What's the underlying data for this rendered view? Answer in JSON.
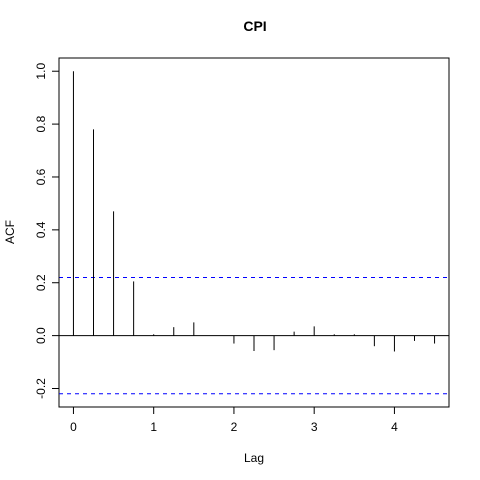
{
  "chart_data": {
    "type": "bar",
    "title": "CPI",
    "xlabel": "Lag",
    "ylabel": "ACF",
    "x": [
      0,
      0.25,
      0.5,
      0.75,
      1.0,
      1.25,
      1.5,
      1.75,
      2.0,
      2.25,
      2.5,
      2.75,
      3.0,
      3.25,
      3.5,
      3.75,
      4.0,
      4.25,
      4.5
    ],
    "values": [
      1.0,
      0.78,
      0.47,
      0.205,
      0.005,
      0.032,
      0.05,
      0.0,
      -0.03,
      -0.058,
      -0.055,
      0.015,
      0.035,
      0.005,
      0.005,
      -0.04,
      -0.06,
      -0.02,
      -0.03
    ],
    "xlim": [
      -0.18,
      4.68
    ],
    "ylim": [
      -0.27,
      1.05
    ],
    "xticks": [
      0,
      1,
      2,
      3,
      4
    ],
    "xtick_labels": [
      "0",
      "1",
      "2",
      "3",
      "4"
    ],
    "yticks": [
      -0.2,
      0.0,
      0.2,
      0.4,
      0.6,
      0.8,
      1.0
    ],
    "ytick_labels": [
      "-0.2",
      "0.0",
      "0.2",
      "0.4",
      "0.6",
      "0.8",
      "1.0"
    ],
    "confidence_bounds": [
      0.22,
      -0.22
    ],
    "confidence_color": "#0000ff",
    "bar_color": "#000000",
    "grid": false
  }
}
